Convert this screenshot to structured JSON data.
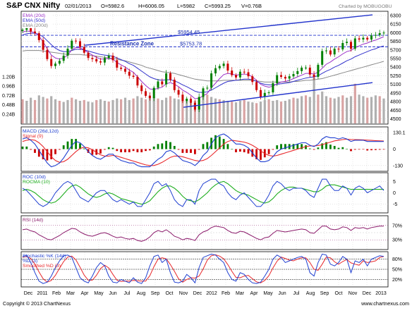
{
  "header": {
    "symbol": "S&P CNX Nifty",
    "date": "02/01/2013",
    "open": "O=5982.6",
    "high": "H=6006.05",
    "low": "L=5982",
    "close": "C=5993.25",
    "volume": "V=0.76B",
    "brand": "Charted by MOBUGOBU"
  },
  "footer": {
    "copyright": "Copyright © 2013 ChartNexus",
    "url": "www.chartnexus.com"
  },
  "chart_data": {
    "type": "line",
    "x_ticks": [
      "Dec",
      "2011",
      "Feb",
      "Mar",
      "Apr",
      "May",
      "Jun",
      "Jul",
      "Aug",
      "Sep",
      "Oct",
      "Nov",
      "Dec",
      "2012",
      "Feb",
      "Mar",
      "Apr",
      "May",
      "Jun",
      "Jul",
      "Aug",
      "Sep",
      "Oct",
      "Nov",
      "Dec",
      "2013"
    ],
    "colors": {
      "price_up": "#008000",
      "price_down": "#cc0000",
      "ema20": "#9b30c8",
      "ema50": "#3333cc",
      "ema200": "#888888",
      "trend": "#2233cc",
      "volume": "#b0b0b0",
      "macd_line": "#1f3fd1",
      "signal_line": "#e8282b",
      "roc_line": "#1f3fd1",
      "rocma_line": "#1fae1f",
      "rsi_line": "#8b1a6b",
      "stoch_k": "#1f3fd1",
      "stoch_d": "#e8282b",
      "grid": "#c8c8c8",
      "panel_border": "#000000"
    },
    "price_panel": {
      "legend": [
        "EMA (20d)",
        "EMA (50d)",
        "EMA (200d)"
      ],
      "y_ticks": [
        4500,
        4650,
        4800,
        4950,
        5100,
        5250,
        5400,
        5550,
        5700,
        5850,
        6000,
        6150,
        6300
      ],
      "ylim": [
        4420,
        6360
      ],
      "resistance_label": "Resistance Zone",
      "levels": [
        {
          "value": 5954.45,
          "label": "$5954.45"
        },
        {
          "value": 5753.78,
          "label": "$5753.78"
        }
      ],
      "series_close": [
        6050,
        6080,
        6020,
        5990,
        5870,
        5700,
        5540,
        5420,
        5460,
        5510,
        5600,
        5720,
        5860,
        5850,
        5750,
        5650,
        5560,
        5540,
        5500,
        5480,
        5560,
        5600,
        5520,
        5390,
        5370,
        5320,
        5250,
        5230,
        5080,
        4980,
        4900,
        4860,
        5040,
        5150,
        5100,
        5290,
        5180,
        5000,
        4920,
        4810,
        4850,
        4780,
        4660,
        4880,
        5030,
        5040,
        5290,
        5380,
        5420,
        5460,
        5340,
        5260,
        5220,
        5320,
        5310,
        5240,
        5140,
        5000,
        4880,
        4950,
        4960,
        5120,
        5260,
        5230,
        5200,
        5240,
        5280,
        5330,
        5390,
        5390,
        5270,
        5230,
        5440,
        5680,
        5690,
        5620,
        5720,
        5710,
        5820,
        5840,
        5720,
        5900,
        5880,
        5910,
        5880,
        5950,
        5960,
        5990,
        6000
      ],
      "ema20": [
        6010,
        6030,
        6020,
        6000,
        5940,
        5840,
        5720,
        5610,
        5560,
        5540,
        5560,
        5610,
        5700,
        5740,
        5740,
        5700,
        5650,
        5610,
        5570,
        5540,
        5540,
        5550,
        5540,
        5480,
        5440,
        5400,
        5350,
        5310,
        5230,
        5150,
        5080,
        5020,
        5010,
        5030,
        5050,
        5110,
        5130,
        5100,
        5060,
        5000,
        4960,
        4910,
        4850,
        4860,
        4900,
        4940,
        5040,
        5120,
        5200,
        5270,
        5290,
        5280,
        5260,
        5270,
        5280,
        5270,
        5230,
        5170,
        5100,
        5070,
        5050,
        5070,
        5110,
        5140,
        5150,
        5170,
        5200,
        5230,
        5260,
        5290,
        5290,
        5280,
        5310,
        5380,
        5450,
        5490,
        5540,
        5580,
        5630,
        5670,
        5690,
        5740,
        5770,
        5800,
        5820,
        5850,
        5870,
        5900,
        5930
      ],
      "ema50": [
        5960,
        5980,
        5990,
        5990,
        5970,
        5930,
        5860,
        5790,
        5730,
        5690,
        5670,
        5670,
        5690,
        5710,
        5710,
        5700,
        5680,
        5660,
        5640,
        5620,
        5610,
        5600,
        5590,
        5560,
        5530,
        5500,
        5460,
        5430,
        5380,
        5330,
        5280,
        5230,
        5200,
        5180,
        5170,
        5180,
        5180,
        5160,
        5130,
        5090,
        5060,
        5020,
        4980,
        4960,
        4960,
        4970,
        5000,
        5040,
        5080,
        5120,
        5150,
        5160,
        5170,
        5180,
        5190,
        5190,
        5180,
        5150,
        5120,
        5100,
        5090,
        5090,
        5100,
        5110,
        5120,
        5130,
        5150,
        5170,
        5190,
        5210,
        5220,
        5230,
        5250,
        5290,
        5330,
        5360,
        5400,
        5430,
        5470,
        5510,
        5540,
        5580,
        5610,
        5640,
        5670,
        5700,
        5720,
        5750,
        5770
      ],
      "ema200": [
        5680,
        5690,
        5690,
        5690,
        5690,
        5680,
        5670,
        5660,
        5650,
        5640,
        5630,
        5620,
        5620,
        5620,
        5620,
        5610,
        5610,
        5600,
        5590,
        5580,
        5570,
        5560,
        5550,
        5540,
        5520,
        5510,
        5490,
        5470,
        5450,
        5430,
        5400,
        5380,
        5360,
        5340,
        5320,
        5310,
        5300,
        5290,
        5270,
        5250,
        5230,
        5210,
        5190,
        5180,
        5170,
        5160,
        5160,
        5160,
        5160,
        5170,
        5170,
        5170,
        5170,
        5170,
        5170,
        5170,
        5170,
        5160,
        5150,
        5140,
        5140,
        5140,
        5140,
        5140,
        5140,
        5140,
        5150,
        5150,
        5160,
        5170,
        5170,
        5180,
        5190,
        5200,
        5220,
        5240,
        5260,
        5280,
        5300,
        5320,
        5340,
        5360,
        5380,
        5400,
        5420,
        5440,
        5460,
        5480,
        5500
      ],
      "trend_upper": [
        [
          4.0,
          5780
        ],
        [
          24.4,
          6310
        ]
      ],
      "trend_lower": [
        [
          11.0,
          4700
        ],
        [
          24.4,
          5130
        ]
      ]
    },
    "volume_panel": {
      "y_ticks": [
        "0.24B",
        "0.48B",
        "0.72B",
        "0.96B",
        "1.20B"
      ],
      "ylim": [
        0,
        1.36
      ],
      "values": [
        0.62,
        0.58,
        0.66,
        0.6,
        0.72,
        0.68,
        0.64,
        0.7,
        0.62,
        0.58,
        0.55,
        0.6,
        0.66,
        0.62,
        0.58,
        0.6,
        0.56,
        0.54,
        0.6,
        0.62,
        0.58,
        0.56,
        0.6,
        0.64,
        0.62,
        0.66,
        0.6,
        0.64,
        0.7,
        0.66,
        0.62,
        0.72,
        0.68,
        0.64,
        0.6,
        0.66,
        0.7,
        0.64,
        0.62,
        0.58,
        0.6,
        0.62,
        0.58,
        0.66,
        0.7,
        0.74,
        0.68,
        0.64,
        0.62,
        0.6,
        0.58,
        0.56,
        0.54,
        0.58,
        0.6,
        0.56,
        0.54,
        0.52,
        0.56,
        0.6,
        0.62,
        0.58,
        0.6,
        0.56,
        0.58,
        0.62,
        0.66,
        0.64,
        0.7,
        0.72,
        0.68,
        1.18,
        0.74,
        0.82,
        0.7,
        0.66,
        0.64,
        0.68,
        0.72,
        0.66,
        0.7,
        1.02,
        0.74,
        0.7,
        0.66,
        0.68,
        0.72,
        0.7,
        0.64
      ]
    },
    "macd_panel": {
      "legend": [
        "MACD (26d,12d)",
        "Signal (9)"
      ],
      "y_ticks": [
        130.1,
        0,
        -130
      ],
      "ylim": [
        -170,
        170
      ],
      "macd": [
        80,
        90,
        70,
        40,
        -10,
        -60,
        -110,
        -140,
        -130,
        -110,
        -70,
        -20,
        30,
        60,
        50,
        20,
        -20,
        -50,
        -70,
        -80,
        -60,
        -40,
        -40,
        -70,
        -90,
        -100,
        -110,
        -110,
        -130,
        -140,
        -140,
        -140,
        -110,
        -80,
        -60,
        -20,
        -10,
        -30,
        -60,
        -90,
        -100,
        -110,
        -130,
        -100,
        -50,
        -20,
        40,
        90,
        110,
        120,
        100,
        70,
        40,
        40,
        30,
        10,
        -30,
        -70,
        -100,
        -100,
        -90,
        -60,
        -20,
        0,
        10,
        20,
        30,
        40,
        50,
        50,
        30,
        20,
        40,
        80,
        100,
        90,
        90,
        80,
        90,
        80,
        60,
        70,
        70,
        70,
        60,
        60,
        60,
        60,
        60
      ],
      "signal": [
        60,
        70,
        75,
        70,
        50,
        20,
        -20,
        -60,
        -90,
        -105,
        -100,
        -80,
        -50,
        -20,
        5,
        15,
        10,
        -5,
        -25,
        -45,
        -55,
        -55,
        -50,
        -55,
        -65,
        -75,
        -85,
        -95,
        -105,
        -115,
        -125,
        -130,
        -130,
        -120,
        -105,
        -85,
        -65,
        -55,
        -55,
        -60,
        -70,
        -80,
        -90,
        -95,
        -90,
        -75,
        -50,
        -20,
        10,
        40,
        60,
        70,
        65,
        60,
        55,
        45,
        30,
        10,
        -15,
        -35,
        -50,
        -55,
        -50,
        -40,
        -30,
        -20,
        -10,
        0,
        10,
        20,
        25,
        25,
        28,
        35,
        45,
        55,
        65,
        70,
        75,
        78,
        76,
        75,
        74,
        73,
        71,
        69,
        67,
        65,
        64
      ]
    },
    "roc_panel": {
      "legend": [
        "ROC (10d)",
        "ROCMA (10)"
      ],
      "y_ticks": [
        5,
        0,
        -5
      ],
      "ylim": [
        -8.5,
        8.5
      ],
      "roc": [
        2,
        1,
        -1,
        -3,
        -5,
        -6,
        -5,
        -3,
        0,
        2,
        4,
        5,
        4,
        1,
        -2,
        -3,
        -4,
        -2,
        0,
        1,
        1,
        -1,
        -3,
        -4,
        -3,
        -4,
        -5,
        -4,
        -6,
        -6,
        -3,
        0,
        4,
        5,
        3,
        4,
        1,
        -3,
        -5,
        -6,
        -3,
        -3,
        -5,
        1,
        4,
        5,
        6,
        6,
        4,
        3,
        0,
        -2,
        -3,
        -1,
        0,
        -2,
        -4,
        -6,
        -6,
        -4,
        -1,
        3,
        5,
        4,
        2,
        1,
        2,
        2,
        2,
        1,
        -1,
        -2,
        2,
        6,
        6,
        3,
        1,
        1,
        3,
        2,
        -1,
        2,
        3,
        2,
        0,
        1,
        2,
        3,
        1
      ],
      "rocma": [
        1,
        1.5,
        1,
        0,
        -1.5,
        -3,
        -4,
        -4.5,
        -4,
        -2.5,
        -0.5,
        1.5,
        3,
        3.5,
        2.5,
        1,
        -0.5,
        -1.5,
        -2,
        -1.5,
        -0.5,
        0,
        -0.5,
        -1.5,
        -2.5,
        -3,
        -3.5,
        -4,
        -4.5,
        -5,
        -4.5,
        -3.5,
        -1.5,
        0.5,
        2,
        3,
        3,
        2,
        0.5,
        -1.5,
        -3,
        -3.5,
        -4,
        -3,
        -1.5,
        0,
        2,
        3.5,
        4.5,
        5,
        4,
        2.5,
        1,
        0,
        -0.5,
        -1,
        -2,
        -3,
        -4,
        -4.5,
        -4,
        -2.5,
        -0.5,
        1,
        2,
        2.5,
        2.5,
        2,
        2,
        1.5,
        1,
        0.5,
        0.5,
        1.5,
        3,
        3.5,
        3.5,
        3,
        2.5,
        2,
        1.5,
        1.5,
        1.5,
        1.5,
        1.5,
        1.5,
        1.5,
        1.5,
        1.5
      ]
    },
    "rsi_panel": {
      "legend": [
        "RSI (14d)"
      ],
      "y_ticks": [
        "70%",
        "30%"
      ],
      "ylim": [
        5,
        95
      ],
      "levels": [
        70,
        50,
        30
      ],
      "rsi": [
        58,
        60,
        55,
        52,
        44,
        38,
        32,
        30,
        36,
        42,
        50,
        56,
        62,
        60,
        52,
        46,
        42,
        40,
        44,
        48,
        50,
        46,
        40,
        36,
        38,
        34,
        32,
        34,
        28,
        26,
        30,
        38,
        50,
        56,
        52,
        58,
        50,
        40,
        36,
        30,
        34,
        32,
        28,
        44,
        52,
        56,
        64,
        68,
        66,
        64,
        56,
        50,
        48,
        54,
        52,
        46,
        40,
        34,
        30,
        36,
        38,
        48,
        56,
        54,
        52,
        54,
        56,
        58,
        60,
        58,
        50,
        48,
        58,
        68,
        68,
        60,
        58,
        60,
        66,
        64,
        56,
        64,
        62,
        64,
        60,
        64,
        66,
        68,
        68
      ]
    },
    "stoch_panel": {
      "legend": [
        "Stochastic %K (14d)",
        "%D (3)",
        "Smoothed %D (3)"
      ],
      "y_ticks": [
        "80%",
        "50%",
        "20%"
      ],
      "ylim": [
        0,
        100
      ],
      "levels": [
        80,
        50,
        20
      ],
      "k": [
        88,
        92,
        70,
        40,
        15,
        8,
        12,
        30,
        55,
        75,
        90,
        92,
        85,
        55,
        25,
        15,
        10,
        30,
        55,
        70,
        60,
        30,
        12,
        10,
        20,
        15,
        10,
        25,
        12,
        8,
        25,
        60,
        88,
        92,
        70,
        80,
        40,
        12,
        10,
        15,
        35,
        25,
        10,
        55,
        85,
        90,
        95,
        92,
        80,
        70,
        40,
        20,
        15,
        40,
        35,
        20,
        10,
        8,
        12,
        30,
        50,
        80,
        92,
        85,
        70,
        75,
        80,
        85,
        88,
        80,
        40,
        30,
        70,
        95,
        92,
        65,
        60,
        70,
        88,
        80,
        40,
        75,
        70,
        80,
        60,
        80,
        85,
        90,
        88
      ],
      "d": [
        85,
        88,
        82,
        65,
        42,
        22,
        12,
        17,
        32,
        53,
        73,
        86,
        89,
        78,
        56,
        33,
        18,
        18,
        32,
        52,
        62,
        54,
        35,
        18,
        14,
        15,
        15,
        17,
        16,
        15,
        15,
        31,
        58,
        80,
        84,
        81,
        64,
        44,
        22,
        12,
        20,
        25,
        24,
        30,
        51,
        77,
        90,
        93,
        89,
        81,
        64,
        44,
        26,
        25,
        30,
        32,
        22,
        13,
        10,
        17,
        31,
        54,
        74,
        86,
        82,
        77,
        75,
        80,
        84,
        84,
        70,
        50,
        47,
        65,
        86,
        84,
        72,
        65,
        73,
        79,
        69,
        65,
        62,
        75,
        70,
        72,
        75,
        85,
        88
      ]
    }
  }
}
